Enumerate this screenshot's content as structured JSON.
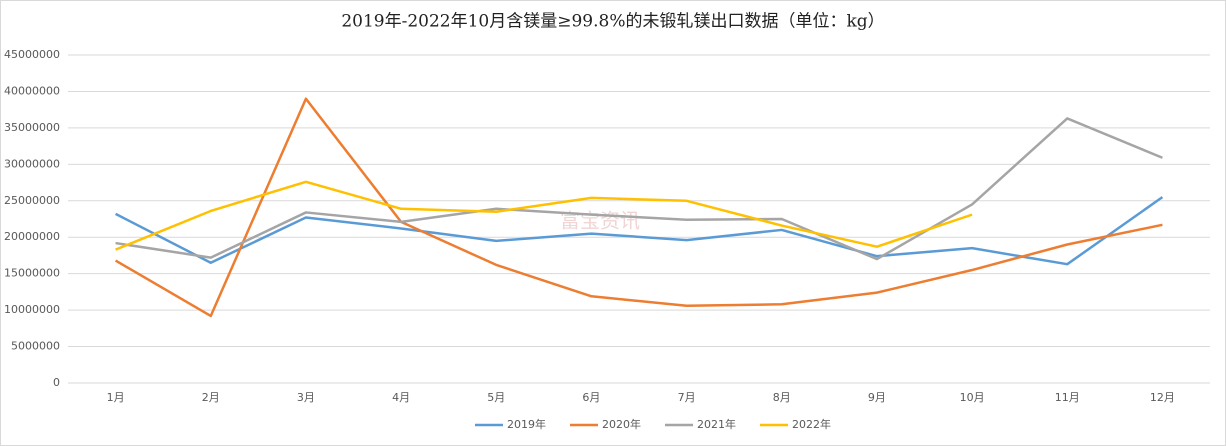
{
  "chart_data": {
    "type": "line",
    "title": "2019年-2022年10月含镁量≥99.8%的未锻轧镁出口数据（单位：kg）",
    "watermark": "富宝资讯",
    "categories": [
      "1月",
      "2月",
      "3月",
      "4月",
      "5月",
      "6月",
      "7月",
      "8月",
      "9月",
      "10月",
      "11月",
      "12月"
    ],
    "series": [
      {
        "name": "2019年",
        "color": "#5b9bd5",
        "values": [
          23200000,
          16500000,
          22700000,
          21200000,
          19500000,
          20500000,
          19600000,
          21000000,
          17400000,
          18500000,
          16300000,
          25500000
        ]
      },
      {
        "name": "2020年",
        "color": "#ed7d31",
        "values": [
          16800000,
          9200000,
          39000000,
          22100000,
          16200000,
          11900000,
          10600000,
          10800000,
          12400000,
          15500000,
          19000000,
          21700000
        ]
      },
      {
        "name": "2021年",
        "color": "#a5a5a5",
        "values": [
          19200000,
          17200000,
          23400000,
          22100000,
          23900000,
          23100000,
          22400000,
          22500000,
          17000000,
          24500000,
          36300000,
          30900000
        ]
      },
      {
        "name": "2022年",
        "color": "#ffc000",
        "values": [
          18300000,
          23600000,
          27600000,
          23900000,
          23500000,
          25400000,
          25000000,
          21600000,
          18700000,
          23100000,
          null,
          null
        ]
      }
    ],
    "ylim": [
      0,
      45000000
    ],
    "yticks": [
      0,
      5000000,
      10000000,
      15000000,
      20000000,
      25000000,
      30000000,
      35000000,
      40000000,
      45000000
    ],
    "grid": true,
    "legend": "bottom"
  }
}
